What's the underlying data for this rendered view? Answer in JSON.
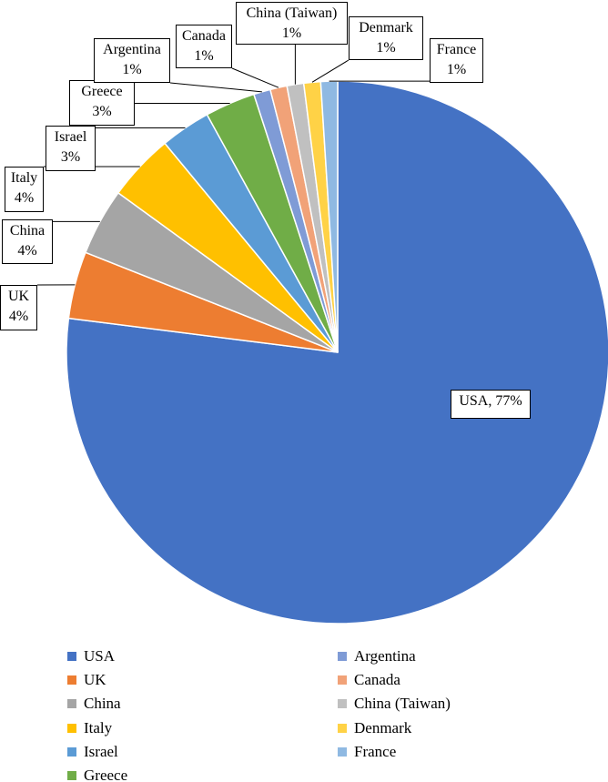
{
  "chart_data": {
    "type": "pie",
    "categories": [
      "USA",
      "UK",
      "China",
      "Italy",
      "Israel",
      "Greece",
      "Argentina",
      "Canada",
      "China (Taiwan)",
      "Denmark",
      "France"
    ],
    "values": [
      77,
      4,
      4,
      4,
      3,
      3,
      1,
      1,
      1,
      1,
      1
    ],
    "value_labels": [
      "USA, 77%",
      "UK\n4%",
      "China\n4%",
      "Italy\n4%",
      "Israel\n3%",
      "Greece\n3%",
      "Argentina\n1%",
      "Canada\n1%",
      "China (Taiwan)\n1%",
      "Denmark\n1%",
      "France\n1%"
    ],
    "colors": [
      "#4472c4",
      "#ed7d31",
      "#a5a5a5",
      "#ffc000",
      "#5b9bd5",
      "#70ad47",
      "#7f9bd6",
      "#f1a278",
      "#c0c0c0",
      "#ffd246",
      "#8fb9e2"
    ],
    "legend": "bottom"
  }
}
